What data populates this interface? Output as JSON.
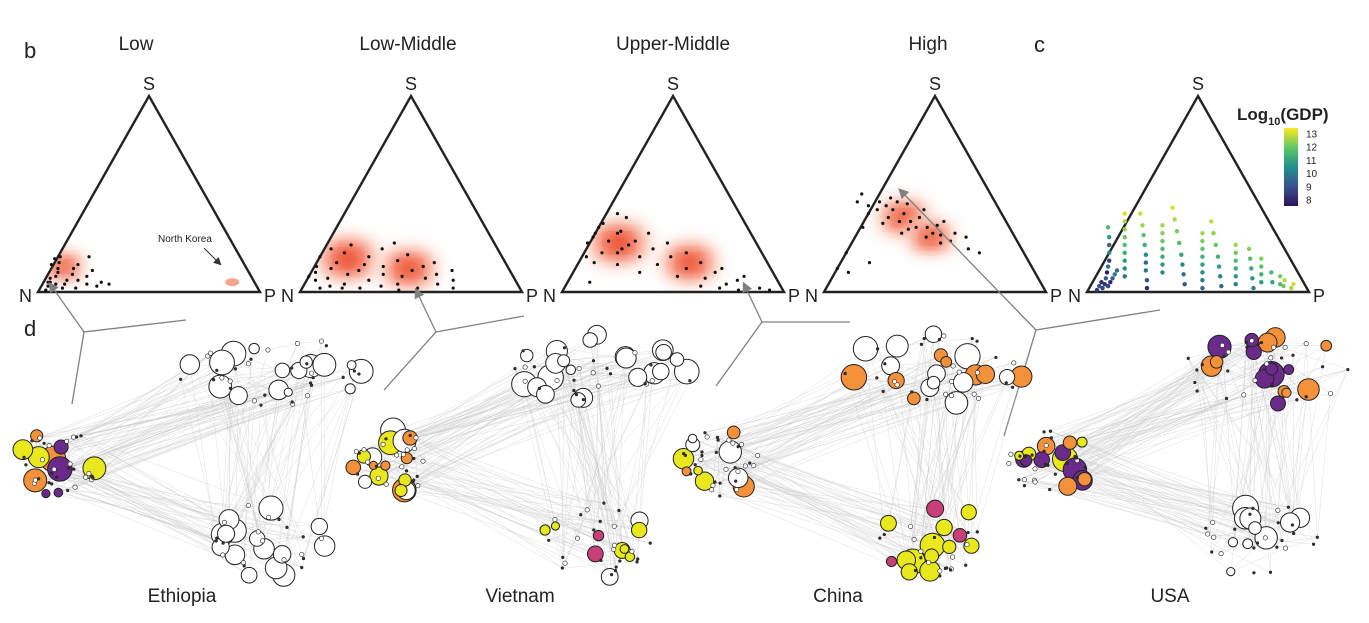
{
  "panel_labels": {
    "b": "b",
    "c": "c",
    "d": "d"
  },
  "vertex_labels": {
    "top": "S",
    "left": "N",
    "right": "P"
  },
  "colors": {
    "density": [
      "#fde9e3",
      "#fbc9b9",
      "#f8a38c",
      "#f47b60",
      "#ee4f36",
      "#e62a17"
    ],
    "orange": "#f5913a",
    "yellow": "#e8e81c",
    "magenta": "#c93f7a",
    "purple": "#6a2a8a",
    "white": "#ffffff",
    "edge": "#c8c8c8",
    "arrow": "#808080"
  },
  "annotation": {
    "north_korea": "North Korea"
  },
  "colorbar": {
    "title_prefix": "Log",
    "title_sub": "10",
    "title_suffix": "(GDP)",
    "ticks": [
      "13",
      "12",
      "11",
      "10",
      "9",
      "8"
    ],
    "stops": [
      "#2d1160",
      "#3b528b",
      "#21908d",
      "#5dc963",
      "#fde725"
    ]
  },
  "countries": [
    "Ethiopia",
    "Vietnam",
    "China",
    "USA"
  ],
  "chart_data": [
    {
      "type": "scatter",
      "panel": "b",
      "title": "Low",
      "axes": [
        "N",
        "S",
        "P"
      ],
      "density": [
        {
          "n": 0.82,
          "s": 0.13,
          "p": 0.05,
          "sd": 0.07
        }
      ],
      "points_ns": [
        [
          0.96,
          0.01
        ],
        [
          0.94,
          0.03
        ],
        [
          0.92,
          0.05
        ],
        [
          0.9,
          0.04
        ],
        [
          0.88,
          0.08
        ],
        [
          0.86,
          0.1
        ],
        [
          0.85,
          0.12
        ],
        [
          0.83,
          0.15
        ],
        [
          0.81,
          0.18
        ],
        [
          0.88,
          0.02
        ],
        [
          0.84,
          0.06
        ],
        [
          0.8,
          0.09
        ],
        [
          0.78,
          0.12
        ],
        [
          0.76,
          0.04
        ],
        [
          0.74,
          0.08
        ],
        [
          0.72,
          0.03
        ],
        [
          0.7,
          0.11
        ],
        [
          0.82,
          0.02
        ],
        [
          0.91,
          0.07
        ],
        [
          0.87,
          0.14
        ],
        [
          0.79,
          0.06
        ],
        [
          0.75,
          0.14
        ],
        [
          0.69,
          0.05
        ],
        [
          0.93,
          0.05
        ],
        [
          0.86,
          0.04
        ],
        [
          0.68,
          0.18
        ],
        [
          0.66,
          0.04
        ],
        [
          0.84,
          0.17
        ]
      ],
      "highlight": {
        "label": "North Korea",
        "n": 0.1,
        "s": 0.05,
        "p": 0.85
      }
    },
    {
      "type": "scatter",
      "panel": "b",
      "title": "Low-Middle",
      "axes": [
        "N",
        "S",
        "P"
      ],
      "density": [
        {
          "n": 0.7,
          "s": 0.17,
          "p": 0.13,
          "sd": 0.11
        },
        {
          "n": 0.45,
          "s": 0.12,
          "p": 0.43,
          "sd": 0.1
        }
      ],
      "points_ns": [
        [
          0.92,
          0.08
        ],
        [
          0.9,
          0.06
        ],
        [
          0.88,
          0.1
        ],
        [
          0.86,
          0.13
        ],
        [
          0.84,
          0.07
        ],
        [
          0.82,
          0.18
        ],
        [
          0.8,
          0.12
        ],
        [
          0.78,
          0.04
        ],
        [
          0.76,
          0.15
        ],
        [
          0.74,
          0.09
        ],
        [
          0.72,
          0.02
        ],
        [
          0.7,
          0.2
        ],
        [
          0.68,
          0.11
        ],
        [
          0.66,
          0.06
        ],
        [
          0.64,
          0.14
        ],
        [
          0.62,
          0.03
        ],
        [
          0.6,
          0.18
        ],
        [
          0.58,
          0.09
        ],
        [
          0.56,
          0.13
        ],
        [
          0.54,
          0.04
        ],
        [
          0.52,
          0.22
        ],
        [
          0.5,
          0.08
        ],
        [
          0.48,
          0.16
        ],
        [
          0.46,
          0.02
        ],
        [
          0.44,
          0.11
        ],
        [
          0.42,
          0.19
        ],
        [
          0.4,
          0.07
        ],
        [
          0.38,
          0.13
        ],
        [
          0.36,
          0.04
        ],
        [
          0.34,
          0.09
        ],
        [
          0.32,
          0.15
        ],
        [
          0.3,
          0.02
        ],
        [
          0.28,
          0.06
        ],
        [
          0.26,
          0.11
        ],
        [
          0.8,
          0.02
        ],
        [
          0.85,
          0.03
        ],
        [
          0.75,
          0.22
        ],
        [
          0.65,
          0.24
        ],
        [
          0.55,
          0.01
        ],
        [
          0.45,
          0.25
        ],
        [
          0.9,
          0.02
        ]
      ]
    },
    {
      "type": "scatter",
      "panel": "b",
      "title": "Upper-Middle",
      "axes": [
        "N",
        "S",
        "P"
      ],
      "density": [
        {
          "n": 0.62,
          "s": 0.25,
          "p": 0.13,
          "sd": 0.11
        },
        {
          "n": 0.35,
          "s": 0.15,
          "p": 0.5,
          "sd": 0.1
        }
      ],
      "points_ns": [
        [
          0.85,
          0.05
        ],
        [
          0.8,
          0.18
        ],
        [
          0.76,
          0.25
        ],
        [
          0.72,
          0.2
        ],
        [
          0.7,
          0.3
        ],
        [
          0.68,
          0.14
        ],
        [
          0.66,
          0.26
        ],
        [
          0.64,
          0.35
        ],
        [
          0.62,
          0.22
        ],
        [
          0.6,
          0.1
        ],
        [
          0.58,
          0.31
        ],
        [
          0.56,
          0.18
        ],
        [
          0.54,
          0.26
        ],
        [
          0.52,
          0.38
        ],
        [
          0.5,
          0.14
        ],
        [
          0.48,
          0.22
        ],
        [
          0.46,
          0.3
        ],
        [
          0.44,
          0.08
        ],
        [
          0.42,
          0.18
        ],
        [
          0.4,
          0.25
        ],
        [
          0.38,
          0.12
        ],
        [
          0.36,
          0.03
        ],
        [
          0.34,
          0.2
        ],
        [
          0.32,
          0.07
        ],
        [
          0.3,
          0.15
        ],
        [
          0.28,
          0.02
        ],
        [
          0.26,
          0.1
        ],
        [
          0.24,
          0.04
        ],
        [
          0.22,
          0.12
        ],
        [
          0.2,
          0.01
        ],
        [
          0.18,
          0.06
        ],
        [
          0.16,
          0.03
        ],
        [
          0.14,
          0.08
        ],
        [
          0.1,
          0.02
        ],
        [
          0.06,
          0.01
        ],
        [
          0.72,
          0.28
        ],
        [
          0.67,
          0.33
        ],
        [
          0.6,
          0.3
        ],
        [
          0.55,
          0.4
        ],
        [
          0.65,
          0.2
        ],
        [
          0.58,
          0.24
        ],
        [
          0.78,
          0.15
        ]
      ]
    },
    {
      "type": "scatter",
      "panel": "b",
      "title": "High",
      "axes": [
        "N",
        "S",
        "P"
      ],
      "density": [
        {
          "n": 0.45,
          "s": 0.38,
          "p": 0.17,
          "sd": 0.09
        },
        {
          "n": 0.38,
          "s": 0.28,
          "p": 0.34,
          "sd": 0.08
        }
      ],
      "points_ns": [
        [
          0.88,
          0.12
        ],
        [
          0.84,
          0.1
        ],
        [
          0.8,
          0.2
        ],
        [
          0.72,
          0.15
        ],
        [
          0.62,
          0.46
        ],
        [
          0.58,
          0.5
        ],
        [
          0.55,
          0.42
        ],
        [
          0.52,
          0.38
        ],
        [
          0.5,
          0.44
        ],
        [
          0.48,
          0.36
        ],
        [
          0.46,
          0.48
        ],
        [
          0.44,
          0.4
        ],
        [
          0.42,
          0.33
        ],
        [
          0.4,
          0.45
        ],
        [
          0.38,
          0.38
        ],
        [
          0.36,
          0.3
        ],
        [
          0.34,
          0.42
        ],
        [
          0.32,
          0.34
        ],
        [
          0.3,
          0.26
        ],
        [
          0.28,
          0.36
        ],
        [
          0.26,
          0.3
        ],
        [
          0.24,
          0.22
        ],
        [
          0.22,
          0.28
        ],
        [
          0.2,
          0.2
        ],
        [
          0.56,
          0.35
        ],
        [
          0.5,
          0.3
        ],
        [
          0.46,
          0.32
        ],
        [
          0.4,
          0.28
        ],
        [
          0.35,
          0.25
        ],
        [
          0.6,
          0.4
        ],
        [
          0.52,
          0.46
        ],
        [
          0.44,
          0.46
        ],
        [
          0.48,
          0.42
        ],
        [
          0.43,
          0.36
        ],
        [
          0.37,
          0.33
        ],
        [
          0.33,
          0.29
        ],
        [
          0.66,
          0.33
        ],
        [
          0.58,
          0.44
        ]
      ]
    },
    {
      "type": "scatter",
      "panel": "c",
      "title": "",
      "axes": [
        "N",
        "S",
        "P"
      ],
      "color_scale": "Log10(GDP)",
      "points_ns_gdp": [
        [
          0.92,
          0.02,
          9.1
        ],
        [
          0.9,
          0.04,
          8.7
        ],
        [
          0.88,
          0.07,
          9.5
        ],
        [
          0.86,
          0.1,
          8.3
        ],
        [
          0.84,
          0.13,
          9.9
        ],
        [
          0.82,
          0.16,
          8.9
        ],
        [
          0.8,
          0.2,
          10.3
        ],
        [
          0.78,
          0.24,
          9.6
        ],
        [
          0.76,
          0.28,
          10.8
        ],
        [
          0.74,
          0.33,
          11.5
        ],
        [
          0.72,
          0.02,
          8.5
        ],
        [
          0.7,
          0.06,
          9.2
        ],
        [
          0.68,
          0.11,
          10.1
        ],
        [
          0.66,
          0.15,
          9.7
        ],
        [
          0.64,
          0.19,
          10.6
        ],
        [
          0.62,
          0.24,
          11.2
        ],
        [
          0.6,
          0.29,
          11.8
        ],
        [
          0.58,
          0.34,
          12.4
        ],
        [
          0.56,
          0.4,
          12.8
        ],
        [
          0.54,
          0.04,
          9.4
        ],
        [
          0.52,
          0.09,
          10.0
        ],
        [
          0.5,
          0.14,
          10.5
        ],
        [
          0.48,
          0.19,
          11.0
        ],
        [
          0.46,
          0.25,
          11.6
        ],
        [
          0.44,
          0.31,
          12.1
        ],
        [
          0.42,
          0.37,
          12.5
        ],
        [
          0.4,
          0.43,
          12.9
        ],
        [
          0.38,
          0.03,
          9.8
        ],
        [
          0.36,
          0.08,
          10.4
        ],
        [
          0.34,
          0.13,
          10.9
        ],
        [
          0.32,
          0.18,
          11.4
        ],
        [
          0.3,
          0.24,
          11.9
        ],
        [
          0.28,
          0.3,
          12.3
        ],
        [
          0.26,
          0.36,
          12.7
        ],
        [
          0.24,
          0.02,
          10.2
        ],
        [
          0.22,
          0.07,
          10.7
        ],
        [
          0.2,
          0.12,
          11.1
        ],
        [
          0.18,
          0.17,
          11.7
        ],
        [
          0.16,
          0.22,
          12.2
        ],
        [
          0.14,
          0.05,
          11.0
        ],
        [
          0.12,
          0.1,
          11.5
        ],
        [
          0.1,
          0.03,
          12.0
        ],
        [
          0.08,
          0.06,
          12.6
        ],
        [
          0.95,
          0.01,
          8.8
        ],
        [
          0.93,
          0.03,
          9.3
        ],
        [
          0.91,
          0.05,
          8.6
        ],
        [
          0.89,
          0.03,
          9.0
        ],
        [
          0.87,
          0.05,
          8.4
        ],
        [
          0.85,
          0.07,
          9.6
        ],
        [
          0.83,
          0.09,
          10.2
        ],
        [
          0.81,
          0.11,
          9.8
        ],
        [
          0.79,
          0.08,
          10.0
        ],
        [
          0.77,
          0.12,
          10.5
        ],
        [
          0.75,
          0.16,
          10.9
        ],
        [
          0.73,
          0.2,
          11.3
        ],
        [
          0.71,
          0.24,
          11.7
        ],
        [
          0.69,
          0.28,
          12.0
        ],
        [
          0.67,
          0.32,
          12.3
        ],
        [
          0.65,
          0.36,
          12.6
        ],
        [
          0.63,
          0.4,
          12.9
        ],
        [
          0.61,
          0.1,
          10.4
        ],
        [
          0.59,
          0.14,
          10.8
        ],
        [
          0.57,
          0.18,
          11.2
        ],
        [
          0.55,
          0.22,
          11.5
        ],
        [
          0.53,
          0.26,
          11.9
        ],
        [
          0.51,
          0.3,
          12.2
        ],
        [
          0.49,
          0.34,
          12.5
        ],
        [
          0.47,
          0.02,
          9.7
        ],
        [
          0.45,
          0.06,
          10.1
        ],
        [
          0.43,
          0.1,
          10.6
        ],
        [
          0.41,
          0.14,
          11.0
        ],
        [
          0.39,
          0.18,
          11.4
        ],
        [
          0.37,
          0.22,
          11.8
        ],
        [
          0.35,
          0.26,
          12.1
        ],
        [
          0.33,
          0.3,
          12.4
        ],
        [
          0.31,
          0.04,
          10.3
        ],
        [
          0.29,
          0.08,
          10.8
        ],
        [
          0.27,
          0.12,
          11.2
        ],
        [
          0.25,
          0.16,
          11.6
        ],
        [
          0.23,
          0.2,
          12.0
        ],
        [
          0.21,
          0.24,
          12.4
        ],
        [
          0.19,
          0.05,
          10.9
        ],
        [
          0.17,
          0.09,
          11.3
        ],
        [
          0.15,
          0.13,
          11.8
        ],
        [
          0.13,
          0.17,
          12.2
        ],
        [
          0.11,
          0.04,
          11.6
        ],
        [
          0.09,
          0.08,
          12.1
        ],
        [
          0.07,
          0.02,
          12.5
        ],
        [
          0.05,
          0.04,
          12.8
        ]
      ]
    }
  ]
}
